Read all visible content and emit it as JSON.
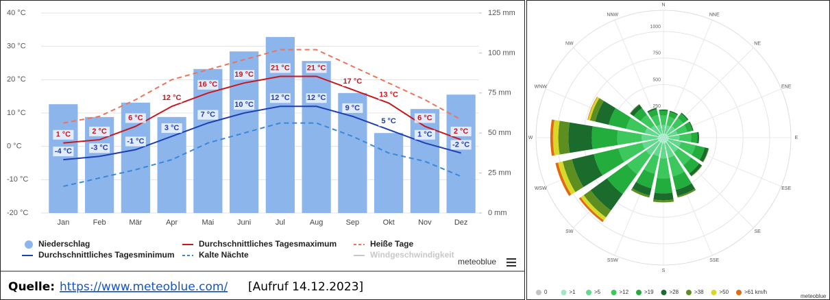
{
  "chart_data": [
    {
      "type": "combo",
      "credit": "meteoblue",
      "categories": [
        "Jan",
        "Feb",
        "Mär",
        "Apr",
        "Mai",
        "Juni",
        "Jul",
        "Aug",
        "Sep",
        "Okt",
        "Nov",
        "Dez"
      ],
      "ylim": [
        -20,
        40
      ],
      "yticks": [
        {
          "value": -20,
          "label": "-20 °C"
        },
        {
          "value": -10,
          "label": "-10 °C"
        },
        {
          "value": 0,
          "label": "0 °C"
        },
        {
          "value": 10,
          "label": "10 °C"
        },
        {
          "value": 20,
          "label": "20 °C"
        },
        {
          "value": 30,
          "label": "30 °C"
        },
        {
          "value": 40,
          "label": "40 °C"
        }
      ],
      "y2lim": [
        0,
        125
      ],
      "y2ticks": [
        {
          "value": 0,
          "label": "0 mm"
        },
        {
          "value": 25,
          "label": "25 mm"
        },
        {
          "value": 50,
          "label": "50 mm"
        },
        {
          "value": 75,
          "label": "75 mm"
        },
        {
          "value": 100,
          "label": "100 mm"
        },
        {
          "value": 125,
          "label": "125 mm"
        }
      ],
      "grid": true,
      "series": [
        {
          "name": "Niederschlag",
          "type": "bar",
          "axis": "y2",
          "color": "#8cb5ec",
          "values": [
            68,
            60,
            69,
            60,
            90,
            101,
            110,
            95,
            75,
            50,
            65,
            74
          ]
        },
        {
          "name": "Durchschnittliches Tagesmaximum",
          "type": "line",
          "color": "#c8161d",
          "values": [
            1,
            2,
            6,
            12,
            16,
            19,
            21,
            21,
            17,
            13,
            6,
            2
          ],
          "value_labels": [
            "1 °C",
            "2 °C",
            "6 °C",
            "12 °C",
            "16 °C",
            "19 °C",
            "21 °C",
            "21 °C",
            "17 °C",
            "13 °C",
            "6 °C",
            "2 °C"
          ]
        },
        {
          "name": "Heiße Tage",
          "type": "line",
          "dashed": true,
          "color": "#f07258",
          "values": [
            7,
            9,
            14,
            20,
            23,
            26,
            29,
            29,
            24,
            19,
            14,
            8
          ]
        },
        {
          "name": "Durchschnittliches Tagesminimum",
          "type": "line",
          "color": "#1d3fb0",
          "values": [
            -4,
            -3,
            -1,
            3,
            7,
            10,
            12,
            12,
            9,
            5,
            1,
            -2
          ],
          "value_labels": [
            "-4 °C",
            "-3 °C",
            "-1 °C",
            "3 °C",
            "7 °C",
            "10 °C",
            "12 °C",
            "12 °C",
            "9 °C",
            "5 °C",
            "1 °C",
            "-2 °C"
          ]
        },
        {
          "name": "Kalte Nächte",
          "type": "line",
          "dashed": true,
          "color": "#3a86d8",
          "values": [
            -12,
            -9.5,
            -7,
            -4,
            1,
            4,
            7,
            7,
            3,
            -2,
            -4.5,
            -9
          ]
        },
        {
          "name": "Windgeschwindigkeit",
          "type": "line",
          "color": "#c8c8c8"
        }
      ]
    },
    {
      "type": "windrose",
      "credit": "meteoblue",
      "categories": [
        "N",
        "NNE",
        "NE",
        "ENE",
        "E",
        "ESE",
        "SE",
        "SSE",
        "S",
        "SSW",
        "SW",
        "WSW",
        "W",
        "WNW",
        "NW",
        "NNW"
      ],
      "rlim": [
        0,
        1200
      ],
      "rticks": [
        250,
        500,
        750,
        1000
      ],
      "grid": true,
      "series": [
        {
          "name": "0",
          "color": "#c4c4c4",
          "values": [
            0,
            0,
            0,
            0,
            0,
            0,
            0,
            0,
            0,
            0,
            0,
            0,
            0,
            0,
            0,
            0
          ]
        },
        {
          "name": ">1",
          "color": "#9fe8c4",
          "values": [
            40,
            40,
            45,
            45,
            50,
            50,
            50,
            55,
            55,
            50,
            55,
            55,
            55,
            50,
            45,
            40
          ]
        },
        {
          "name": ">5",
          "color": "#62d98c",
          "values": [
            80,
            80,
            90,
            90,
            100,
            120,
            120,
            140,
            140,
            130,
            150,
            150,
            150,
            130,
            100,
            85
          ]
        },
        {
          "name": ">12",
          "color": "#3cc85c",
          "values": [
            90,
            85,
            95,
            95,
            110,
            140,
            150,
            180,
            190,
            170,
            220,
            230,
            230,
            180,
            120,
            95
          ]
        },
        {
          "name": ">19",
          "color": "#22ad3c",
          "values": [
            45,
            45,
            50,
            50,
            60,
            90,
            95,
            130,
            140,
            140,
            230,
            240,
            240,
            170,
            80,
            55
          ]
        },
        {
          "name": ">28",
          "color": "#1a6b2c",
          "values": [
            10,
            10,
            10,
            10,
            15,
            35,
            30,
            60,
            65,
            70,
            190,
            210,
            220,
            130,
            40,
            15
          ]
        },
        {
          "name": ">38",
          "color": "#5c8f1f",
          "values": [
            0,
            0,
            0,
            0,
            0,
            5,
            5,
            15,
            20,
            20,
            80,
            90,
            95,
            50,
            5,
            0
          ]
        },
        {
          "name": ">50",
          "color": "#d8d82a",
          "values": [
            0,
            0,
            0,
            0,
            0,
            0,
            0,
            0,
            0,
            0,
            35,
            45,
            50,
            20,
            0,
            0
          ]
        },
        {
          "name": ">61 km/h",
          "color": "#e06a12",
          "values": [
            0,
            0,
            0,
            0,
            0,
            0,
            0,
            0,
            0,
            0,
            20,
            25,
            25,
            5,
            0,
            0
          ]
        }
      ]
    }
  ],
  "caption": {
    "label": "Quelle:",
    "link": "https://www.meteoblue.com/",
    "note": "[Aufruf 14.12.2023]"
  }
}
